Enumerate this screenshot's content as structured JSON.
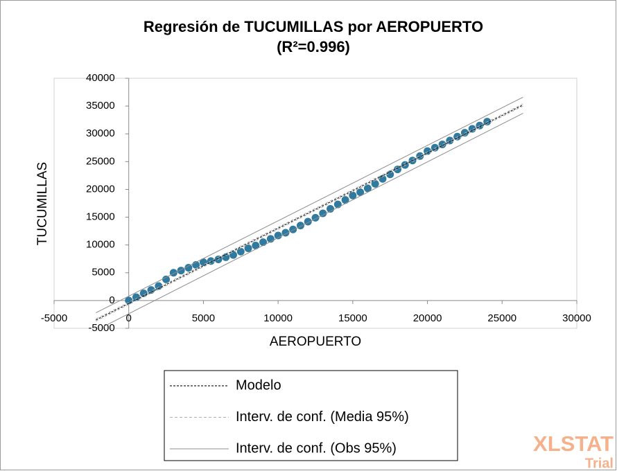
{
  "chart_data": {
    "type": "scatter",
    "title": "Regresión de TUCUMILLAS por AEROPUERTO",
    "subtitle": "(R²=0.996)",
    "x_label": "AEROPUERTO",
    "y_label": "TUCUMILLAS",
    "xlim": [
      -5000,
      30000
    ],
    "xticks": [
      -5000,
      0,
      5000,
      10000,
      15000,
      20000,
      25000,
      30000
    ],
    "ylim": [
      -5000,
      40000
    ],
    "yticks": [
      -5000,
      0,
      5000,
      10000,
      15000,
      20000,
      25000,
      30000,
      35000,
      40000
    ],
    "grid": false,
    "points": {
      "color": "#2f7a9e",
      "x": [
        0,
        500,
        1000,
        1500,
        2000,
        2500,
        3000,
        3500,
        4000,
        4500,
        5000,
        5500,
        6000,
        6500,
        7000,
        7500,
        8000,
        8500,
        9000,
        9500,
        10000,
        10500,
        11000,
        11500,
        12000,
        12500,
        13000,
        13500,
        14000,
        14500,
        15000,
        15500,
        16000,
        16500,
        17000,
        17500,
        18000,
        18500,
        19000,
        19500,
        20000,
        20500,
        21000,
        21500,
        22000,
        22500,
        23000,
        23500,
        24000
      ],
      "y": [
        0,
        600,
        1300,
        1900,
        2600,
        3800,
        5000,
        5400,
        5900,
        6400,
        6900,
        7100,
        7400,
        7800,
        8200,
        8800,
        9400,
        9900,
        10500,
        11100,
        11700,
        12200,
        12800,
        13500,
        14200,
        14900,
        15700,
        16500,
        17300,
        18100,
        18900,
        19500,
        20200,
        21000,
        21900,
        22700,
        23600,
        24400,
        25200,
        26000,
        26900,
        27500,
        28100,
        28800,
        29500,
        30200,
        30900,
        31500,
        32200
      ]
    },
    "series": [
      {
        "name": "Modelo",
        "color": "#222222",
        "dash": "3 2",
        "width": 1.2,
        "lines": [
          {
            "x": [
              -2200,
              26400
            ],
            "values": [
              -3500,
              35200
            ]
          }
        ]
      },
      {
        "name": "Interv. de conf. (Media 95%)",
        "color": "#b0b0b0",
        "dash": "4 3",
        "width": 1,
        "lines": [
          {
            "x": [
              -2200,
              26400
            ],
            "values": [
              -3300,
              35400
            ]
          },
          {
            "x": [
              -2200,
              26400
            ],
            "values": [
              -3700,
              35000
            ]
          }
        ]
      },
      {
        "name": "Interv. de conf. (Obs 95%)",
        "color": "#8c8c8c",
        "dash": "none",
        "width": 1,
        "lines": [
          {
            "x": [
              -2200,
              26400
            ],
            "values": [
              -2200,
              36600
            ]
          },
          {
            "x": [
              -1700,
              26400
            ],
            "values": [
              -4700,
              33700
            ]
          }
        ]
      }
    ],
    "watermark": "XLSTAT",
    "watermark_sub": "Trial"
  }
}
